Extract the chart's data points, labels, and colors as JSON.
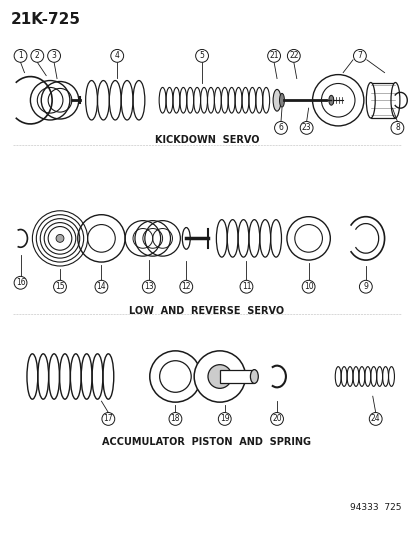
{
  "title": "21K-725",
  "bg_color": "#ffffff",
  "line_color": "#1a1a1a",
  "section1_label": "KICKDOWN  SERVO",
  "section2_label": "LOW  AND  REVERSE  SERVO",
  "section3_label": "ACCUMULATOR  PISTON  AND  SPRING",
  "catalog_number": "94333  725",
  "figsize": [
    4.14,
    5.33
  ],
  "dpi": 100
}
